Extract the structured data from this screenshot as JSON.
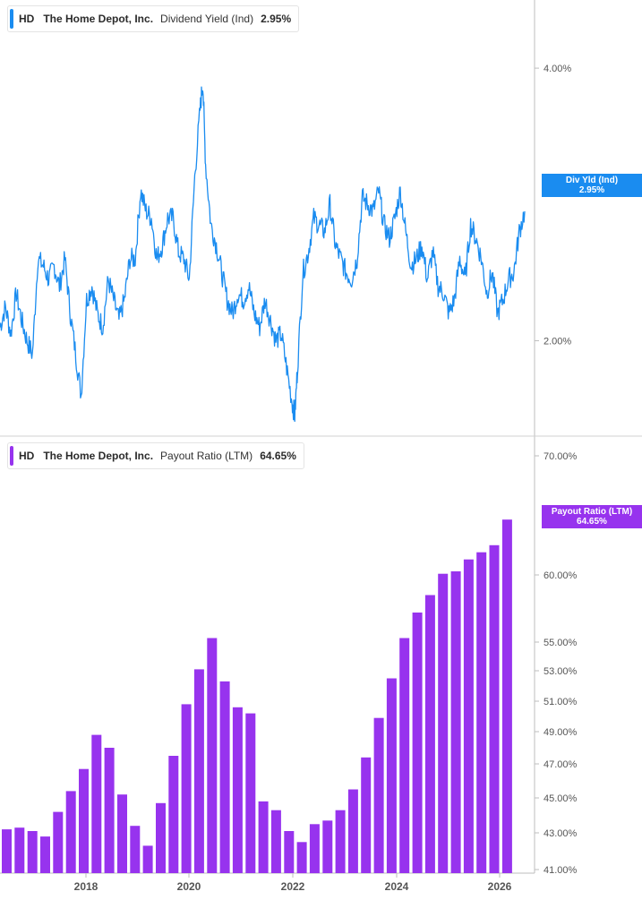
{
  "colors": {
    "yield": "#1a8cf0",
    "payout": "#9733ee",
    "axis": "#bdbdbd"
  },
  "legend_top": {
    "ticker": "HD",
    "name": "The Home Depot, Inc.",
    "metric": "Dividend Yield (Ind)",
    "value": "2.95%"
  },
  "legend_bottom": {
    "ticker": "HD",
    "name": "The Home Depot, Inc.",
    "metric": "Payout Ratio (LTM)",
    "value": "64.65%"
  },
  "tag_top": {
    "label": "Div Yld (Ind)",
    "value": "2.95%"
  },
  "tag_bottom": {
    "label": "Payout Ratio (LTM)",
    "value": "64.65%"
  },
  "chart_data": [
    {
      "type": "line",
      "series": [
        {
          "name": "Dividend Yield (Ind)"
        }
      ],
      "x_range": [
        2016.5,
        2026.3
      ],
      "ylim": [
        1.3,
        4.5
      ],
      "y_ticks": [
        "4.00%",
        "2.00%"
      ],
      "y_tick_values": [
        4.0,
        2.0
      ],
      "x": [
        2016.5,
        2016.6,
        2016.7,
        2016.8,
        2016.9,
        2017.0,
        2017.1,
        2017.2,
        2017.3,
        2017.4,
        2017.5,
        2017.6,
        2017.7,
        2017.8,
        2017.9,
        2018.0,
        2018.1,
        2018.2,
        2018.3,
        2018.4,
        2018.5,
        2018.6,
        2018.7,
        2018.8,
        2018.9,
        2019.0,
        2019.1,
        2019.2,
        2019.3,
        2019.4,
        2019.5,
        2019.6,
        2019.7,
        2019.8,
        2019.9,
        2020.0,
        2020.1,
        2020.2,
        2020.25,
        2020.3,
        2020.4,
        2020.5,
        2020.6,
        2020.7,
        2020.8,
        2020.9,
        2021.0,
        2021.1,
        2021.2,
        2021.3,
        2021.4,
        2021.5,
        2021.6,
        2021.7,
        2021.8,
        2021.9,
        2021.95,
        2022.0,
        2022.1,
        2022.2,
        2022.3,
        2022.4,
        2022.5,
        2022.6,
        2022.7,
        2022.8,
        2022.9,
        2023.0,
        2023.1,
        2023.2,
        2023.3,
        2023.4,
        2023.5,
        2023.6,
        2023.7,
        2023.8,
        2023.9,
        2024.0,
        2024.1,
        2024.2,
        2024.3,
        2024.4,
        2024.5,
        2024.6,
        2024.7,
        2024.8,
        2024.9,
        2025.0,
        2025.1,
        2025.2,
        2025.3,
        2025.4,
        2025.5,
        2025.6,
        2025.7,
        2025.8,
        2025.9,
        2026.0,
        2026.1,
        2026.2
      ],
      "y": [
        2.1,
        2.25,
        2.05,
        2.35,
        2.15,
        2.0,
        1.9,
        2.6,
        2.55,
        2.45,
        2.55,
        2.4,
        2.6,
        2.2,
        1.9,
        1.6,
        2.3,
        2.4,
        2.2,
        2.1,
        2.45,
        2.3,
        2.15,
        2.3,
        2.6,
        2.6,
        3.1,
        2.95,
        2.9,
        2.6,
        2.7,
        2.9,
        2.9,
        2.65,
        2.6,
        2.45,
        3.2,
        3.7,
        3.9,
        3.3,
        2.85,
        2.7,
        2.5,
        2.3,
        2.2,
        2.35,
        2.3,
        2.4,
        2.2,
        2.1,
        2.3,
        2.15,
        2.0,
        2.05,
        1.8,
        1.55,
        1.45,
        1.8,
        2.5,
        2.65,
        2.9,
        2.85,
        2.8,
        3.0,
        2.7,
        2.6,
        2.5,
        2.45,
        2.6,
        3.05,
        3.0,
        2.95,
        3.1,
        2.85,
        2.75,
        2.9,
        3.1,
        2.8,
        2.55,
        2.6,
        2.7,
        2.45,
        2.65,
        2.4,
        2.35,
        2.2,
        2.3,
        2.6,
        2.45,
        2.85,
        2.75,
        2.6,
        2.35,
        2.5,
        2.2,
        2.3,
        2.45,
        2.5,
        2.8,
        2.95
      ]
    },
    {
      "type": "bar",
      "series": [
        {
          "name": "Payout Ratio (LTM)"
        }
      ],
      "categories": [
        "2016Q3",
        "2016Q4",
        "2017Q1",
        "2017Q2",
        "2017Q3",
        "2017Q4",
        "2018Q1",
        "2018Q2",
        "2018Q3",
        "2018Q4",
        "2019Q1",
        "2019Q2",
        "2019Q3",
        "2019Q4",
        "2020Q1",
        "2020Q2",
        "2020Q3",
        "2020Q4",
        "2021Q1",
        "2021Q2",
        "2021Q3",
        "2021Q4",
        "2022Q1",
        "2022Q2",
        "2022Q3",
        "2022Q4",
        "2023Q1",
        "2023Q2",
        "2023Q3",
        "2023Q4",
        "2024Q1",
        "2024Q2",
        "2024Q3",
        "2024Q4",
        "2025Q1",
        "2025Q2",
        "2025Q3",
        "2025Q4",
        "2026Q1",
        "2026Q2"
      ],
      "values": [
        43.2,
        43.3,
        43.1,
        42.8,
        44.2,
        45.4,
        46.7,
        48.8,
        48.0,
        45.2,
        43.4,
        42.3,
        44.7,
        47.5,
        50.8,
        53.1,
        55.3,
        52.3,
        50.6,
        50.2,
        44.8,
        44.3,
        43.1,
        42.5,
        43.5,
        43.7,
        44.3,
        45.5,
        47.4,
        49.9,
        52.5,
        55.3,
        57.2,
        58.5,
        60.1,
        60.3,
        61.3,
        61.9,
        62.5,
        64.65
      ],
      "ylim": [
        41.0,
        72.0
      ],
      "y_ticks": [
        "70.00%",
        "60.00%",
        "55.00%",
        "53.00%",
        "51.00%",
        "49.00%",
        "47.00%",
        "45.00%",
        "43.00%",
        "41.00%"
      ],
      "y_tick_values": [
        70,
        60,
        55,
        53,
        51,
        49,
        47,
        45,
        43,
        41
      ],
      "x_ticks": [
        "2018",
        "2020",
        "2022",
        "2024",
        "2026"
      ],
      "x_tick_values": [
        2018,
        2020,
        2022,
        2024,
        2026
      ]
    }
  ]
}
